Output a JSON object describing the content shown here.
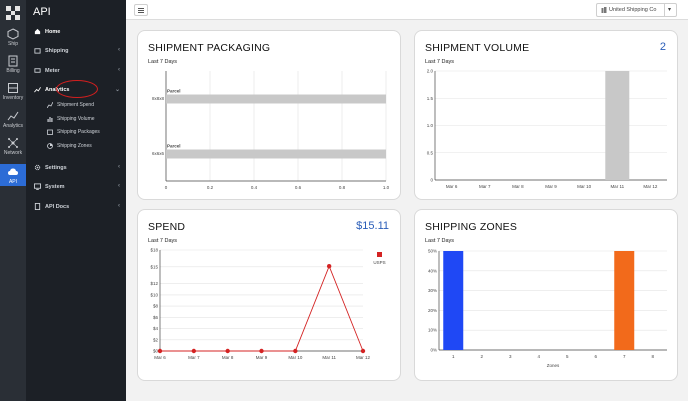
{
  "rail": {
    "items": [
      {
        "label": "Ship",
        "icon": "ship-icon"
      },
      {
        "label": "Billing",
        "icon": "billing-icon"
      },
      {
        "label": "Inventory",
        "icon": "inventory-icon"
      },
      {
        "label": "Analytics",
        "icon": "analytics-icon"
      },
      {
        "label": "Network",
        "icon": "network-icon"
      },
      {
        "label": "API",
        "icon": "api-cloud-icon"
      }
    ]
  },
  "sidebar": {
    "title": "API",
    "home": "Home",
    "shipping": "Shipping",
    "meter": "Meter",
    "analytics": "Analytics",
    "analytics_children": [
      "Shipment Spend",
      "Shipping Volume",
      "Shipping Packages",
      "Shipping Zones"
    ],
    "settings": "Settings",
    "system": "System",
    "api_docs": "API Docs"
  },
  "topbar": {
    "account": "United Shipping Co"
  },
  "colors": {
    "accent": "#2a5db8",
    "active_rail": "#2c6cd6",
    "highlight_circle": "#d21f1f",
    "bar_gray": "#c8c8c8",
    "line_red": "#d42323",
    "zone_blue": "#1f48f5",
    "zone_orange": "#f26a1b"
  },
  "cards": {
    "packaging": {
      "title": "SHIPMENT PACKAGING",
      "subtitle": "Last 7 Days"
    },
    "volume": {
      "title": "SHIPMENT VOLUME",
      "subtitle": "Last 7 Days",
      "value": "2"
    },
    "spend": {
      "title": "SPEND",
      "subtitle": "Last 7 Days",
      "value": "$15.11"
    },
    "zones": {
      "title": "SHIPPING ZONES",
      "subtitle": "Last 7 Days"
    }
  },
  "chart_data": [
    {
      "type": "bar",
      "orientation": "horizontal",
      "categories": [
        "8x8x8",
        "6x6x6"
      ],
      "series": [
        {
          "name": "Parcel",
          "values": [
            1.0,
            1.0
          ]
        }
      ],
      "xlim": [
        0,
        1.0
      ],
      "xticks": [
        "0",
        "0.2",
        "0.4",
        "0.6",
        "0.8",
        "1.0"
      ],
      "grid": true
    },
    {
      "type": "bar",
      "categories": [
        "Mar 6",
        "Mar 7",
        "Mar 8",
        "Mar 9",
        "Mar 10",
        "Mar 11",
        "Mar 12"
      ],
      "values": [
        0,
        0,
        0,
        0,
        0,
        2,
        0
      ],
      "ylim": [
        0,
        2.0
      ],
      "yticks": [
        "0",
        "0.5",
        "1.0",
        "1.5",
        "2.0"
      ],
      "grid": true
    },
    {
      "type": "line",
      "x": [
        "Mar 6",
        "Mar 7",
        "Mar 8",
        "Mar 9",
        "Mar 10",
        "Mar 11",
        "Mar 12"
      ],
      "series": [
        {
          "name": "USPS",
          "values": [
            0,
            0,
            0,
            0,
            0,
            15.11,
            0
          ]
        }
      ],
      "ylim": [
        0,
        18
      ],
      "yticks": [
        "$0",
        "$2",
        "$4",
        "$6",
        "$8",
        "$10",
        "$12",
        "$15",
        "$18"
      ],
      "legend": "top-right",
      "grid": true
    },
    {
      "type": "bar",
      "categories": [
        "1",
        "2",
        "3",
        "4",
        "5",
        "6",
        "7",
        "8"
      ],
      "values": [
        50,
        0,
        0,
        0,
        0,
        0,
        50,
        0
      ],
      "xlabel": "Zones",
      "ylim": [
        0,
        50
      ],
      "yticks": [
        "0%",
        "10%",
        "20%",
        "30%",
        "40%",
        "50%"
      ],
      "grid": true
    }
  ]
}
